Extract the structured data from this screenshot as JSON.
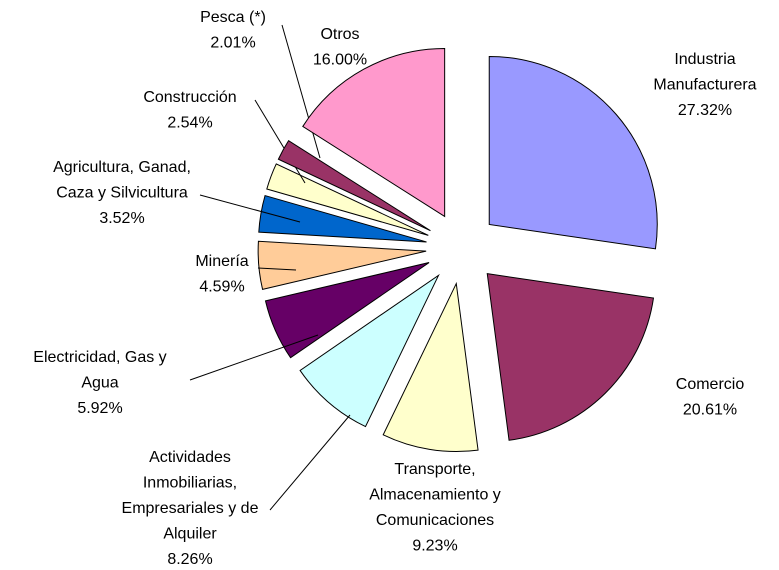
{
  "chart_data": {
    "type": "pie",
    "categories": [
      [
        "Industria",
        "Manufacturera"
      ],
      [
        "Comercio"
      ],
      [
        "Transporte,",
        "Almacenamiento y",
        "Comunicaciones"
      ],
      [
        "Actividades",
        "Inmobiliarias,",
        "Empresariales y de",
        "Alquiler"
      ],
      [
        "Electricidad, Gas y",
        "Agua"
      ],
      [
        "Minería"
      ],
      [
        "Agricultura, Ganad,",
        "Caza y Silvicultura"
      ],
      [
        "Construcción"
      ],
      [
        "Pesca (*)"
      ],
      [
        "Otros"
      ]
    ],
    "values": [
      27.32,
      20.61,
      9.23,
      8.26,
      5.92,
      4.59,
      3.52,
      2.54,
      2.01,
      16.0
    ],
    "value_labels": [
      "27.32%",
      "20.61%",
      "9.23%",
      "8.26%",
      "5.92%",
      "4.59%",
      "3.52%",
      "2.54%",
      "2.01%",
      "16.00%"
    ],
    "colors": [
      "#9999ff",
      "#993366",
      "#ffffcc",
      "#ccffff",
      "#660066",
      "#ffcc99",
      "#0066cc",
      "#ffffcc",
      "#993366",
      "#ff99cc"
    ]
  }
}
